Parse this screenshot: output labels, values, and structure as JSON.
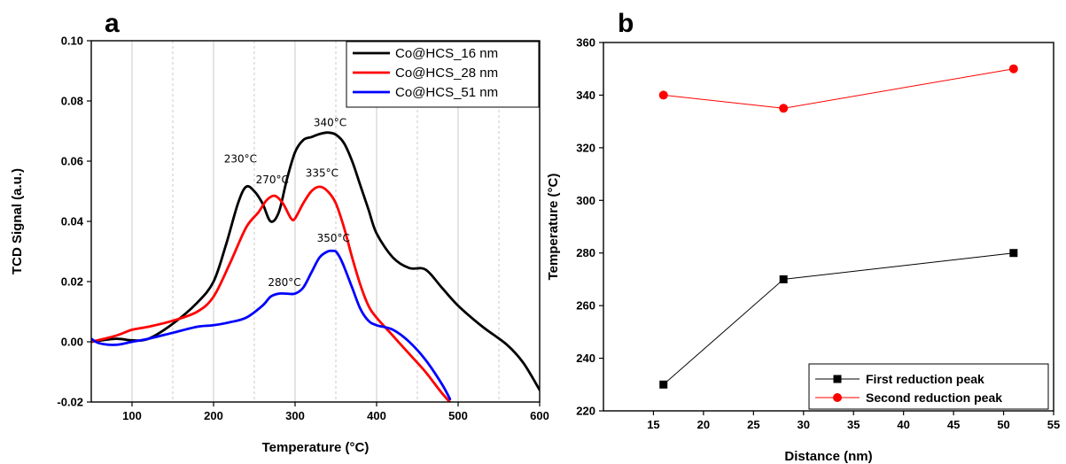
{
  "chart_data": [
    {
      "panel": "a",
      "type": "line",
      "xlabel": "Temperature (°C)",
      "ylabel": "TCD Signal (a.u.)",
      "xlim": [
        50,
        600
      ],
      "ylim": [
        -0.02,
        0.1
      ],
      "xticks": [
        100,
        200,
        300,
        400,
        500,
        600
      ],
      "xtick_labels": [
        "100",
        "200",
        "300",
        "400",
        "500",
        "600"
      ],
      "yticks": [
        -0.02,
        0.0,
        0.02,
        0.04,
        0.06,
        0.08,
        0.1
      ],
      "ytick_labels": [
        "-0.02",
        "0.00",
        "0.02",
        "0.04",
        "0.06",
        "0.08",
        "0.10"
      ],
      "grid": "vertical",
      "legend_position": "top-right",
      "series": [
        {
          "name": "Co@HCS_16 nm",
          "color": "#000000",
          "x": [
            50,
            80,
            100,
            120,
            150,
            180,
            200,
            215,
            230,
            240,
            250,
            260,
            270,
            280,
            290,
            300,
            310,
            320,
            330,
            340,
            350,
            360,
            370,
            380,
            390,
            400,
            420,
            440,
            460,
            480,
            500,
            530,
            560,
            580,
            600
          ],
          "y": [
            0.0,
            0.001,
            0.0005,
            0.001,
            0.006,
            0.013,
            0.02,
            0.032,
            0.046,
            0.0515,
            0.05,
            0.046,
            0.04,
            0.043,
            0.054,
            0.063,
            0.067,
            0.068,
            0.069,
            0.0695,
            0.0688,
            0.066,
            0.06,
            0.052,
            0.044,
            0.036,
            0.028,
            0.0245,
            0.024,
            0.018,
            0.012,
            0.005,
            -0.001,
            -0.007,
            -0.016
          ]
        },
        {
          "name": "Co@HCS_28 nm",
          "color": "#ff0000",
          "x": [
            50,
            80,
            100,
            120,
            150,
            180,
            200,
            220,
            240,
            255,
            265,
            275,
            285,
            295,
            300,
            310,
            320,
            330,
            340,
            350,
            360,
            370,
            380,
            390,
            400,
            420,
            440,
            460,
            480,
            500
          ],
          "y": [
            0.0,
            0.002,
            0.004,
            0.005,
            0.007,
            0.01,
            0.015,
            0.026,
            0.038,
            0.043,
            0.047,
            0.0485,
            0.046,
            0.041,
            0.041,
            0.046,
            0.05,
            0.0515,
            0.05,
            0.046,
            0.038,
            0.028,
            0.019,
            0.012,
            0.008,
            0.002,
            -0.004,
            -0.01,
            -0.017,
            -0.023
          ]
        },
        {
          "name": "Co@HCS_51 nm",
          "color": "#0000ff",
          "x": [
            50,
            60,
            80,
            100,
            120,
            150,
            180,
            200,
            220,
            240,
            260,
            270,
            280,
            290,
            300,
            310,
            320,
            330,
            340,
            345,
            350,
            355,
            360,
            370,
            380,
            390,
            400,
            420,
            440,
            460,
            480,
            490
          ],
          "y": [
            0.001,
            -0.0005,
            -0.001,
            0.0,
            0.001,
            0.003,
            0.005,
            0.0055,
            0.0065,
            0.008,
            0.012,
            0.015,
            0.016,
            0.016,
            0.016,
            0.018,
            0.023,
            0.028,
            0.03,
            0.0302,
            0.03,
            0.028,
            0.025,
            0.018,
            0.011,
            0.007,
            0.0055,
            0.004,
            0.0,
            -0.006,
            -0.014,
            -0.019
          ]
        }
      ],
      "annotations": [
        {
          "text": "230°C",
          "x": 233,
          "y": 0.0595
        },
        {
          "text": "270°C",
          "x": 272,
          "y": 0.0527
        },
        {
          "text": "280°C",
          "x": 287,
          "y": 0.0185
        },
        {
          "text": "335°C",
          "x": 333,
          "y": 0.0548
        },
        {
          "text": "340°C",
          "x": 343,
          "y": 0.0716
        },
        {
          "text": "350°C",
          "x": 347,
          "y": 0.0332
        }
      ]
    },
    {
      "panel": "b",
      "type": "line",
      "xlabel": "Distance (nm)",
      "ylabel": "Temperature (°C)",
      "xlim": [
        10,
        55
      ],
      "ylim": [
        220,
        360
      ],
      "xticks": [
        15,
        20,
        25,
        30,
        35,
        40,
        45,
        50,
        55
      ],
      "xtick_labels": [
        "15",
        "20",
        "25",
        "30",
        "35",
        "40",
        "45",
        "50",
        "55"
      ],
      "yticks": [
        220,
        240,
        260,
        280,
        300,
        320,
        340,
        360
      ],
      "ytick_labels": [
        "220",
        "240",
        "260",
        "280",
        "300",
        "320",
        "340",
        "360"
      ],
      "grid": "none",
      "legend_position": "bottom-right",
      "series": [
        {
          "name": "First reduction peak",
          "color": "#000000",
          "marker": "square",
          "x": [
            16,
            28,
            51
          ],
          "y": [
            230,
            270,
            280
          ]
        },
        {
          "name": "Second reduction peak",
          "color": "#ff0000",
          "marker": "circle",
          "x": [
            16,
            28,
            51
          ],
          "y": [
            340,
            335,
            350
          ]
        }
      ]
    }
  ],
  "panel_labels": {
    "a": "a",
    "b": "b"
  }
}
